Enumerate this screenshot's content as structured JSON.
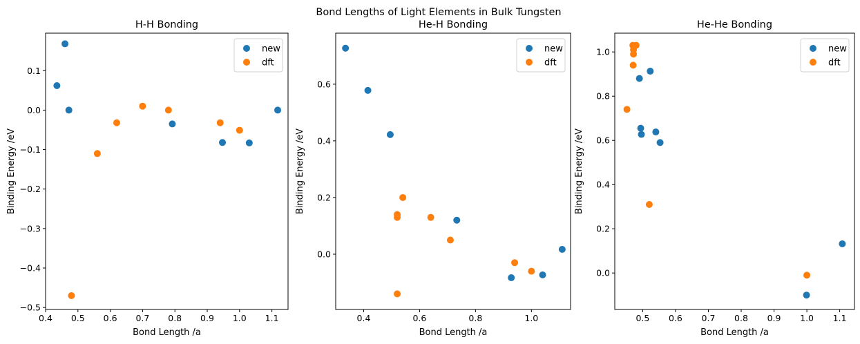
{
  "figure": {
    "suptitle": "Bond Lengths of Light Elements in Bulk Tungsten"
  },
  "colors": {
    "new": "#1f77b4",
    "dft": "#ff7f0e"
  },
  "chart_data": [
    {
      "type": "scatter",
      "title": "H-H Bonding",
      "xlabel": "Bond Length /a",
      "ylabel": "Binding Energy /eV",
      "xlim": [
        0.4,
        1.15
      ],
      "ylim": [
        -0.505,
        0.195
      ],
      "xticks": [
        0.4,
        0.5,
        0.6,
        0.7,
        0.8,
        0.9,
        1.0,
        1.1
      ],
      "xtick_labels": [
        "0.4",
        "0.5",
        "0.6",
        "0.7",
        "0.8",
        "0.9",
        "1.0",
        "1.1"
      ],
      "yticks": [
        -0.5,
        -0.4,
        -0.3,
        -0.2,
        -0.1,
        0.0,
        0.1
      ],
      "ytick_labels": [
        "−0.5",
        "−0.4",
        "−0.3",
        "−0.2",
        "−0.1",
        "0.0",
        "0.1"
      ],
      "legend": "top-right",
      "series": [
        {
          "name": "new",
          "x": [
            0.435,
            0.46,
            0.472,
            0.792,
            0.947,
            1.03,
            1.118
          ],
          "y": [
            0.062,
            0.168,
            0.0,
            -0.035,
            -0.082,
            -0.083,
            0.0
          ]
        },
        {
          "name": "dft",
          "x": [
            0.48,
            0.56,
            0.62,
            0.7,
            0.78,
            0.94,
            1.0
          ],
          "y": [
            -0.47,
            -0.11,
            -0.032,
            0.01,
            0.0,
            -0.032,
            -0.051
          ]
        }
      ]
    },
    {
      "type": "scatter",
      "title": "He-H Bonding",
      "xlabel": "Bond Length /a",
      "ylabel": "Binding Energy /eV",
      "xlim": [
        0.3,
        1.14
      ],
      "ylim": [
        -0.195,
        0.78
      ],
      "xticks": [
        0.4,
        0.6,
        0.8,
        1.0
      ],
      "xtick_labels": [
        "0.4",
        "0.6",
        "0.8",
        "1.0"
      ],
      "yticks": [
        0.0,
        0.2,
        0.4,
        0.6
      ],
      "ytick_labels": [
        "0.0",
        "0.2",
        "0.4",
        "0.6"
      ],
      "legend": "top-right",
      "series": [
        {
          "name": "new",
          "x": [
            0.335,
            0.415,
            0.495,
            0.733,
            0.928,
            1.04,
            1.11
          ],
          "y": [
            0.727,
            0.578,
            0.422,
            0.12,
            -0.083,
            -0.073,
            0.017
          ]
        },
        {
          "name": "dft",
          "x": [
            0.52,
            0.52,
            0.54,
            0.52,
            0.64,
            0.71,
            0.94,
            1.0
          ],
          "y": [
            0.14,
            0.13,
            0.2,
            -0.14,
            0.13,
            0.05,
            -0.03,
            -0.06
          ]
        }
      ]
    },
    {
      "type": "scatter",
      "title": "He-He Bonding",
      "xlabel": "Bond Length /a",
      "ylabel": "Binding Energy /eV",
      "xlim": [
        0.415,
        1.145
      ],
      "ylim": [
        -0.165,
        1.085
      ],
      "xticks": [
        0.5,
        0.6,
        0.7,
        0.8,
        0.9,
        1.0,
        1.1
      ],
      "xtick_labels": [
        "0.5",
        "0.6",
        "0.7",
        "0.8",
        "0.9",
        "1.0",
        "1.1"
      ],
      "yticks": [
        0.0,
        0.2,
        0.4,
        0.6,
        0.8,
        1.0
      ],
      "ytick_labels": [
        "0.0",
        "0.2",
        "0.4",
        "0.6",
        "0.8",
        "1.0"
      ],
      "legend": "top-right",
      "series": [
        {
          "name": "new",
          "x": [
            0.49,
            0.494,
            0.496,
            0.523,
            0.54,
            0.553,
            0.999,
            1.108
          ],
          "y": [
            0.88,
            0.655,
            0.627,
            0.913,
            0.638,
            0.59,
            -0.1,
            0.132
          ]
        },
        {
          "name": "dft",
          "x": [
            0.452,
            0.47,
            0.472,
            0.472,
            0.48,
            0.471,
            0.52,
            1.0
          ],
          "y": [
            0.74,
            1.03,
            1.01,
            0.99,
            1.03,
            0.94,
            0.31,
            -0.01
          ]
        }
      ]
    }
  ]
}
